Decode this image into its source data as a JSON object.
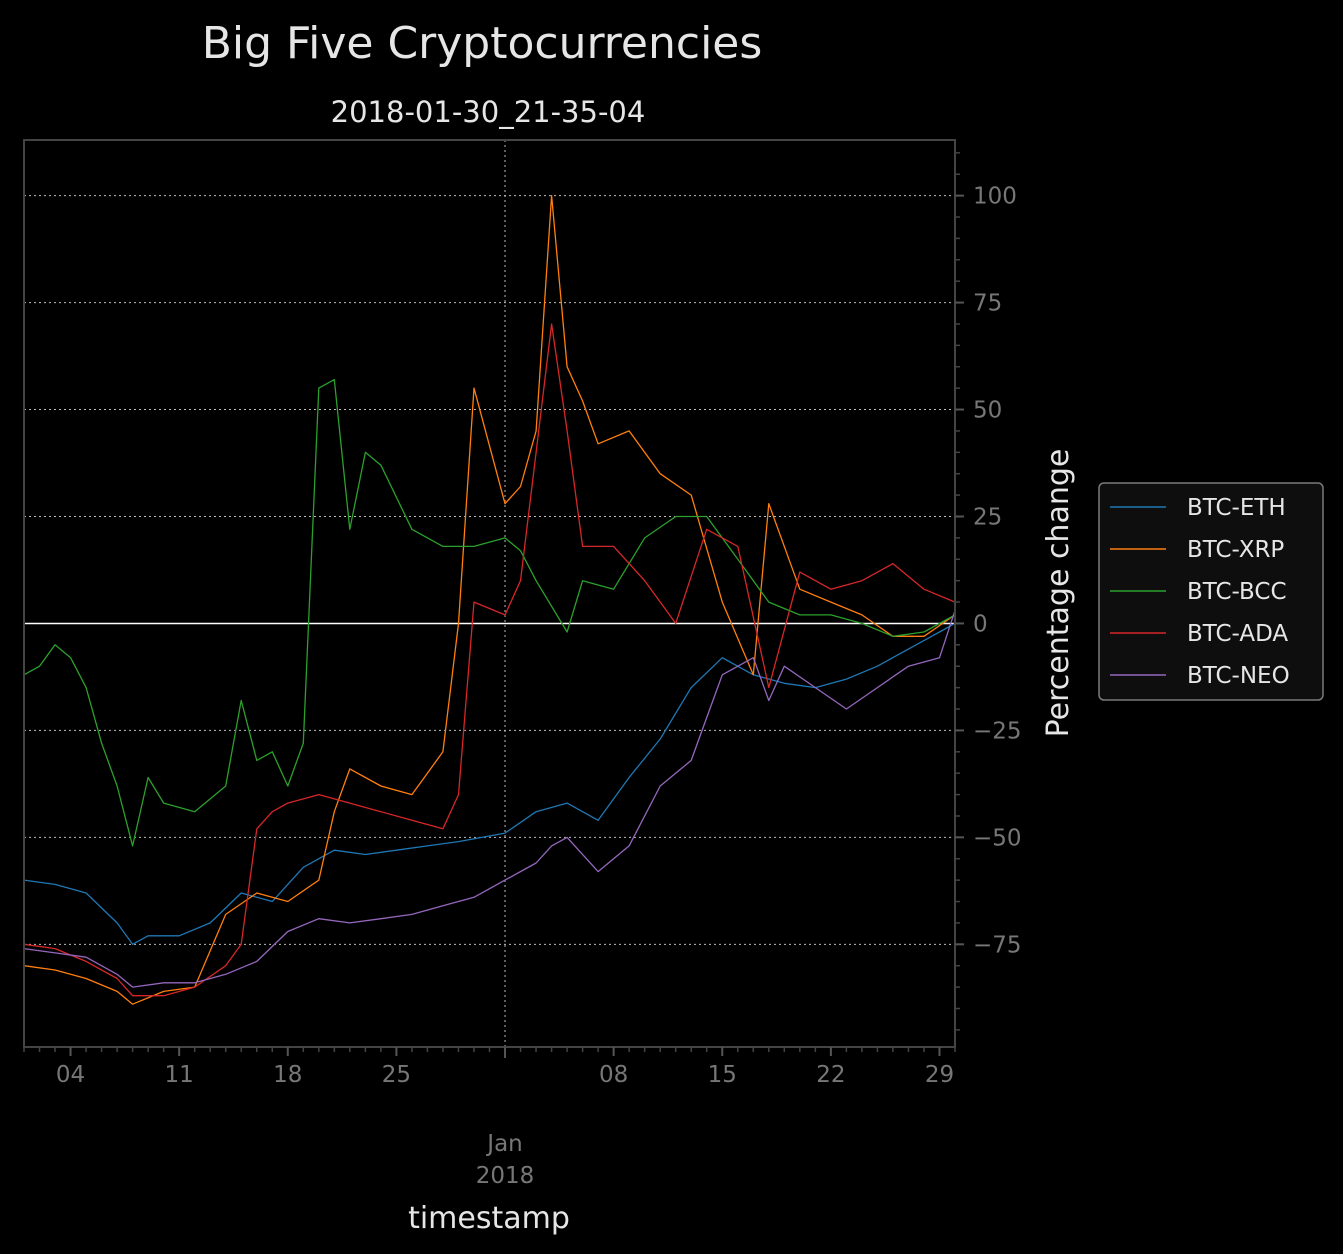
{
  "chart_data": {
    "type": "line",
    "title": "Big Five Cryptocurrencies",
    "subtitle": "2018-01-30_21-35-04",
    "xlabel": "timestamp",
    "ylabel": "Percentage change",
    "xlim": [
      "2017-12-01",
      "2018-01-30"
    ],
    "ylim": [
      -99,
      113
    ],
    "x_ticks": [
      {
        "date": "2017-12-04",
        "label": "04"
      },
      {
        "date": "2017-12-11",
        "label": "11"
      },
      {
        "date": "2017-12-18",
        "label": "18"
      },
      {
        "date": "2017-12-25",
        "label": "25"
      },
      {
        "date": "2018-01-08",
        "label": "08"
      },
      {
        "date": "2018-01-15",
        "label": "15"
      },
      {
        "date": "2018-01-22",
        "label": "22"
      },
      {
        "date": "2018-01-29",
        "label": "29"
      }
    ],
    "x_major": {
      "date": "2018-01-01",
      "label_month": "Jan",
      "label_year": "2018"
    },
    "y_ticks": [
      -75,
      -50,
      -25,
      0,
      25,
      50,
      75,
      100
    ],
    "y_tick_labels": [
      "−75",
      "−50",
      "−25",
      "0",
      "25",
      "50",
      "75",
      "100"
    ],
    "zero_line": 0,
    "grid": true,
    "legend_position": "right",
    "series": [
      {
        "name": "BTC-ETH",
        "color": "#1f77b4",
        "x": [
          "2017-12-01",
          "2017-12-03",
          "2017-12-05",
          "2017-12-07",
          "2017-12-08",
          "2017-12-09",
          "2017-12-11",
          "2017-12-13",
          "2017-12-15",
          "2017-12-17",
          "2017-12-19",
          "2017-12-21",
          "2017-12-23",
          "2017-12-25",
          "2017-12-27",
          "2017-12-29",
          "2018-01-01",
          "2018-01-03",
          "2018-01-05",
          "2018-01-07",
          "2018-01-09",
          "2018-01-11",
          "2018-01-13",
          "2018-01-15",
          "2018-01-17",
          "2018-01-19",
          "2018-01-21",
          "2018-01-23",
          "2018-01-25",
          "2018-01-27",
          "2018-01-29",
          "2018-01-30"
        ],
        "y": [
          -60,
          -61,
          -63,
          -70,
          -75,
          -73,
          -73,
          -70,
          -63,
          -65,
          -57,
          -53,
          -54,
          -53,
          -52,
          -51,
          -49,
          -44,
          -42,
          -46,
          -36,
          -27,
          -15,
          -8,
          -12,
          -14,
          -15,
          -13,
          -10,
          -6,
          -2,
          0
        ]
      },
      {
        "name": "BTC-XRP",
        "color": "#ff7f0e",
        "x": [
          "2017-12-01",
          "2017-12-03",
          "2017-12-05",
          "2017-12-07",
          "2017-12-08",
          "2017-12-10",
          "2017-12-12",
          "2017-12-14",
          "2017-12-16",
          "2017-12-18",
          "2017-12-20",
          "2017-12-21",
          "2017-12-22",
          "2017-12-24",
          "2017-12-26",
          "2017-12-28",
          "2017-12-29",
          "2017-12-30",
          "2018-01-01",
          "2018-01-02",
          "2018-01-03",
          "2018-01-04",
          "2018-01-05",
          "2018-01-06",
          "2018-01-07",
          "2018-01-09",
          "2018-01-11",
          "2018-01-13",
          "2018-01-15",
          "2018-01-17",
          "2018-01-18",
          "2018-01-20",
          "2018-01-22",
          "2018-01-24",
          "2018-01-26",
          "2018-01-28",
          "2018-01-30"
        ],
        "y": [
          -80,
          -81,
          -83,
          -86,
          -89,
          -86,
          -85,
          -68,
          -63,
          -65,
          -60,
          -44,
          -34,
          -38,
          -40,
          -30,
          0,
          55,
          28,
          32,
          45,
          100,
          60,
          52,
          42,
          45,
          35,
          30,
          5,
          -12,
          28,
          8,
          5,
          2,
          -3,
          -3,
          2
        ]
      },
      {
        "name": "BTC-BCC",
        "color": "#2ca02c",
        "x": [
          "2017-12-01",
          "2017-12-02",
          "2017-12-03",
          "2017-12-04",
          "2017-12-05",
          "2017-12-06",
          "2017-12-07",
          "2017-12-08",
          "2017-12-09",
          "2017-12-10",
          "2017-12-12",
          "2017-12-14",
          "2017-12-15",
          "2017-12-16",
          "2017-12-17",
          "2017-12-18",
          "2017-12-19",
          "2017-12-20",
          "2017-12-21",
          "2017-12-22",
          "2017-12-23",
          "2017-12-24",
          "2017-12-26",
          "2017-12-28",
          "2017-12-30",
          "2018-01-01",
          "2018-01-02",
          "2018-01-03",
          "2018-01-05",
          "2018-01-06",
          "2018-01-08",
          "2018-01-10",
          "2018-01-12",
          "2018-01-14",
          "2018-01-16",
          "2018-01-18",
          "2018-01-20",
          "2018-01-22",
          "2018-01-24",
          "2018-01-26",
          "2018-01-28",
          "2018-01-30"
        ],
        "y": [
          -12,
          -10,
          -5,
          -8,
          -15,
          -28,
          -38,
          -52,
          -36,
          -42,
          -44,
          -38,
          -18,
          -32,
          -30,
          -38,
          -28,
          55,
          57,
          22,
          40,
          37,
          22,
          18,
          18,
          20,
          17,
          10,
          -2,
          10,
          8,
          20,
          25,
          25,
          15,
          5,
          2,
          2,
          0,
          -3,
          -2,
          2
        ]
      },
      {
        "name": "BTC-ADA",
        "color": "#d62728",
        "x": [
          "2017-12-01",
          "2017-12-03",
          "2017-12-05",
          "2017-12-07",
          "2017-12-08",
          "2017-12-10",
          "2017-12-12",
          "2017-12-14",
          "2017-12-15",
          "2017-12-16",
          "2017-12-17",
          "2017-12-18",
          "2017-12-20",
          "2017-12-22",
          "2017-12-24",
          "2017-12-26",
          "2017-12-28",
          "2017-12-29",
          "2017-12-30",
          "2018-01-01",
          "2018-01-02",
          "2018-01-03",
          "2018-01-04",
          "2018-01-05",
          "2018-01-06",
          "2018-01-08",
          "2018-01-10",
          "2018-01-12",
          "2018-01-14",
          "2018-01-16",
          "2018-01-18",
          "2018-01-20",
          "2018-01-22",
          "2018-01-24",
          "2018-01-26",
          "2018-01-28",
          "2018-01-30"
        ],
        "y": [
          -75,
          -76,
          -79,
          -83,
          -87,
          -87,
          -85,
          -80,
          -75,
          -48,
          -44,
          -42,
          -40,
          -42,
          -44,
          -46,
          -48,
          -40,
          5,
          2,
          10,
          40,
          70,
          45,
          18,
          18,
          10,
          0,
          22,
          18,
          -15,
          12,
          8,
          10,
          14,
          8,
          5
        ]
      },
      {
        "name": "BTC-NEO",
        "color": "#9467bd",
        "x": [
          "2017-12-01",
          "2017-12-03",
          "2017-12-05",
          "2017-12-07",
          "2017-12-08",
          "2017-12-10",
          "2017-12-12",
          "2017-12-14",
          "2017-12-16",
          "2017-12-18",
          "2017-12-20",
          "2017-12-22",
          "2017-12-24",
          "2017-12-26",
          "2017-12-28",
          "2017-12-30",
          "2018-01-01",
          "2018-01-03",
          "2018-01-04",
          "2018-01-05",
          "2018-01-07",
          "2018-01-09",
          "2018-01-11",
          "2018-01-13",
          "2018-01-14",
          "2018-01-15",
          "2018-01-17",
          "2018-01-18",
          "2018-01-19",
          "2018-01-21",
          "2018-01-23",
          "2018-01-25",
          "2018-01-27",
          "2018-01-29",
          "2018-01-30"
        ],
        "y": [
          -76,
          -77,
          -78,
          -82,
          -85,
          -84,
          -84,
          -82,
          -79,
          -72,
          -69,
          -70,
          -69,
          -68,
          -66,
          -64,
          -60,
          -56,
          -52,
          -50,
          -58,
          -52,
          -38,
          -32,
          -22,
          -12,
          -8,
          -18,
          -10,
          -15,
          -20,
          -15,
          -10,
          -8,
          3
        ]
      }
    ]
  }
}
